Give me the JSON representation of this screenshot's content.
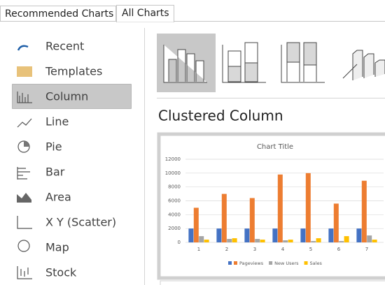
{
  "tabs": [
    "Recommended Charts",
    "All Charts"
  ],
  "sidebar": [
    "Recent",
    "Templates",
    "Column",
    "Line",
    "Pie",
    "Bar",
    "Area",
    "X Y (Scatter)",
    "Map",
    "Stock"
  ],
  "heading": "Clustered Column",
  "preview": {
    "type": "bar",
    "title": "Chart Title",
    "categories": [
      "1",
      "2",
      "3",
      "4",
      "5",
      "6",
      "7"
    ],
    "series": [
      {
        "color": "#4472c4",
        "values": [
          2000,
          2000,
          2000,
          2000,
          2000,
          2000,
          2000
        ]
      },
      {
        "name": "Pageviews",
        "color": "#ed7d31",
        "values": [
          5000,
          7000,
          6400,
          9800,
          10000,
          5600,
          8900
        ]
      },
      {
        "name": "New Users",
        "color": "#a5a5a5",
        "values": [
          900,
          500,
          500,
          300,
          200,
          200,
          1000
        ]
      },
      {
        "name": "Sales",
        "color": "#ffc000",
        "values": [
          400,
          600,
          400,
          400,
          600,
          900,
          400
        ]
      }
    ],
    "ylim": [
      0,
      12000
    ],
    "yticks": [
      0,
      2000,
      4000,
      6000,
      8000,
      10000,
      12000
    ],
    "grid": true
  }
}
